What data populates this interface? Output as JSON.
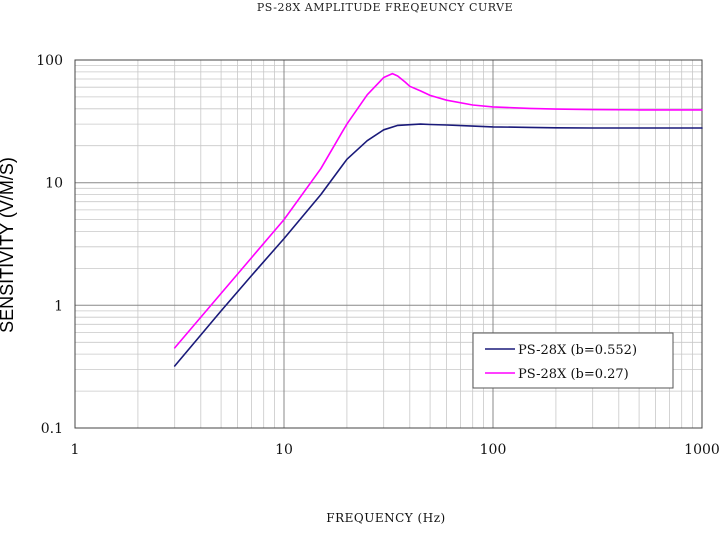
{
  "chart_data": {
    "type": "line",
    "title": "PS-28X AMPLITUDE FREQEUNCY CURVE",
    "xlabel": "FREQUENCY (Hz)",
    "ylabel": "SENSITIVITY (V/M/S)",
    "x_scale": "log",
    "y_scale": "log",
    "xlim": [
      1,
      1000
    ],
    "ylim": [
      0.1,
      100
    ],
    "x_ticks": [
      "1",
      "10",
      "100",
      "1000"
    ],
    "y_ticks": [
      "0.1",
      "1",
      "10",
      "100"
    ],
    "grid": true,
    "legend_position": "lower-right",
    "series": [
      {
        "name": "PS-28X (b=0.552)",
        "color": "#1a1a7a",
        "x": [
          3,
          5,
          7,
          10,
          15,
          19,
          20,
          25,
          30,
          35,
          40,
          45,
          50,
          60,
          80,
          100,
          150,
          200,
          300,
          500,
          1000
        ],
        "y": [
          0.32,
          0.9,
          1.75,
          3.5,
          8.0,
          13.8,
          15.5,
          22.0,
          27.0,
          29.3,
          29.7,
          30.0,
          29.8,
          29.5,
          28.9,
          28.5,
          28.2,
          28.0,
          27.9,
          27.9,
          27.9
        ]
      },
      {
        "name": "PS-28X (b=0.27)",
        "color": "#ff00ff",
        "x": [
          3,
          5,
          7,
          10,
          15,
          19,
          20,
          25,
          30,
          33,
          35,
          38,
          40,
          45,
          50,
          60,
          80,
          100,
          150,
          200,
          300,
          500,
          1000
        ],
        "y": [
          0.45,
          1.25,
          2.45,
          5.0,
          13.0,
          26.0,
          30.0,
          52.0,
          72.0,
          77.5,
          74.0,
          66.0,
          61.0,
          56.0,
          51.5,
          47.0,
          43.0,
          41.5,
          40.3,
          39.8,
          39.4,
          39.2,
          39.2
        ]
      }
    ]
  }
}
